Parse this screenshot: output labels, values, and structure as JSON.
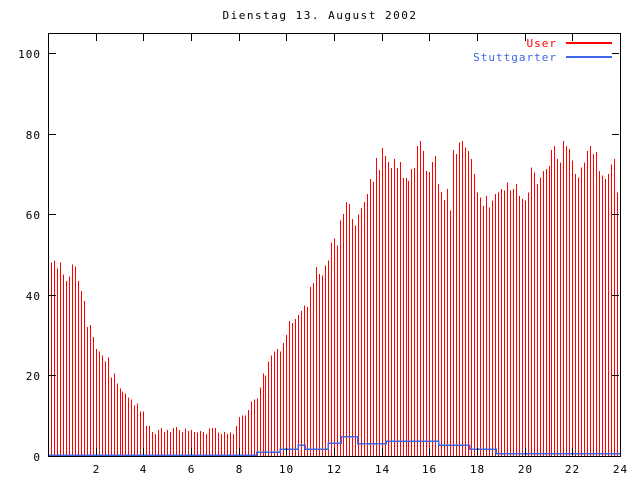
{
  "chart_data": {
    "type": "bar",
    "title": "Dienstag 13. August 2002",
    "xlabel": "",
    "ylabel": "",
    "xlim": [
      0,
      24
    ],
    "ylim": [
      0,
      105
    ],
    "x_ticks": [
      2,
      4,
      6,
      8,
      10,
      12,
      14,
      16,
      18,
      20,
      22,
      24
    ],
    "y_ticks": [
      0,
      20,
      40,
      60,
      80,
      100
    ],
    "grid": false,
    "legend_position": "top-right",
    "background_color": "#ffffff",
    "axis_color": "#000000",
    "series": [
      {
        "name": "User",
        "style": "impulses",
        "color": "#ff0000",
        "x_start": 0,
        "x_step": 0.125,
        "values": [
          49.5,
          48,
          48.5,
          46.5,
          48,
          45,
          43.5,
          44.5,
          47.5,
          47,
          43.5,
          41,
          38.5,
          32,
          32.5,
          29.5,
          26.5,
          26,
          25,
          23.5,
          24.5,
          19.5,
          20.5,
          18,
          16.8,
          16,
          15.5,
          14.5,
          14,
          12.5,
          13,
          11,
          11,
          7.5,
          7.5,
          6,
          5.5,
          6.5,
          7,
          6,
          6.5,
          6,
          7,
          7.2,
          6.5,
          6,
          6.8,
          6.2,
          6.5,
          6,
          5.8,
          6.2,
          6,
          5.5,
          6.8,
          7,
          6.9,
          5.8,
          5.5,
          6,
          5.5,
          5.8,
          5.5,
          7.4,
          9.7,
          10,
          10.1,
          11.4,
          13.5,
          14,
          14.3,
          17,
          20.5,
          20,
          23.5,
          25,
          26,
          26.5,
          26,
          28,
          30,
          33.5,
          33,
          34,
          35,
          36,
          37.4,
          37,
          41.9,
          43,
          46.9,
          45.2,
          44.8,
          47.3,
          48.5,
          53,
          54,
          52.2,
          58.4,
          60.1,
          63,
          62.5,
          58.8,
          57.2,
          60,
          61.5,
          63,
          65,
          68.7,
          68,
          74,
          71,
          76.5,
          74.5,
          73,
          71.5,
          73.7,
          71.5,
          73,
          69,
          69,
          68.3,
          71.2,
          71.5,
          77,
          78.2,
          75.7,
          70.8,
          70.5,
          73,
          74.5,
          67.5,
          65.5,
          63.5,
          66.3,
          61,
          76,
          75,
          77.8,
          78.2,
          76.6,
          75.7,
          73.7,
          70,
          65.4,
          64.2,
          62.1,
          64.6,
          61.7,
          63.4,
          65,
          65.4,
          66.3,
          65.9,
          67.9,
          65.9,
          66.3,
          67.5,
          64.6,
          63.8,
          63.4,
          65.4,
          71.6,
          70.4,
          67.5,
          69.1,
          70.8,
          71.2,
          72,
          76,
          77,
          73.7,
          72.9,
          78.2,
          77,
          76.2,
          73.3,
          70,
          69.1,
          71.6,
          72.9,
          75.7,
          77,
          75,
          75.4,
          70.8,
          69.6,
          68.7,
          70,
          72.4,
          73.7,
          65.4,
          60
        ]
      },
      {
        "name": "Stuttgarter",
        "style": "steps",
        "color": "#3d66e8",
        "points": [
          [
            0,
            0.15
          ],
          [
            8.75,
            0.15
          ],
          [
            8.75,
            1.0
          ],
          [
            9.75,
            1.0
          ],
          [
            9.75,
            1.7
          ],
          [
            10.5,
            1.7
          ],
          [
            10.5,
            2.7
          ],
          [
            10.8,
            2.7
          ],
          [
            10.8,
            1.7
          ],
          [
            11.75,
            1.7
          ],
          [
            11.75,
            3.2
          ],
          [
            12.3,
            3.2
          ],
          [
            12.3,
            4.8
          ],
          [
            13.0,
            4.8
          ],
          [
            13.0,
            3.0
          ],
          [
            14.2,
            3.0
          ],
          [
            14.2,
            3.7
          ],
          [
            16.4,
            3.7
          ],
          [
            16.4,
            2.7
          ],
          [
            17.7,
            2.7
          ],
          [
            17.7,
            1.7
          ],
          [
            18.8,
            1.7
          ],
          [
            18.8,
            0.6
          ],
          [
            24,
            0.6
          ]
        ]
      }
    ]
  }
}
